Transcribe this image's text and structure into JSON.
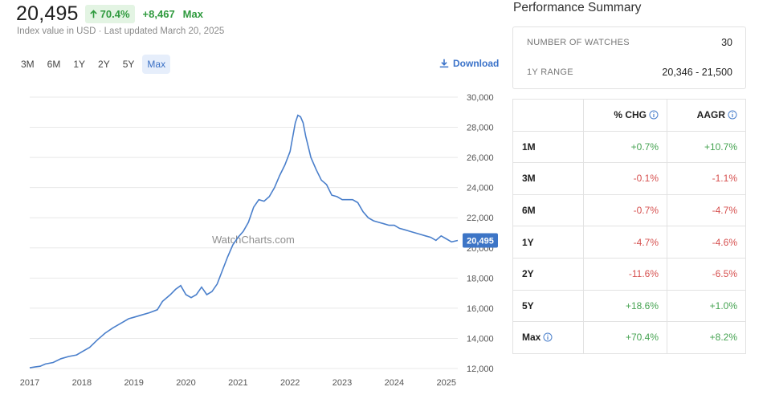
{
  "header": {
    "price": "20,495",
    "pct_change": "70.4%",
    "abs_change": "+8,467",
    "period": "Max",
    "subtitle": "Index value in USD · Last updated March 20, 2025"
  },
  "ranges": [
    "3M",
    "6M",
    "1Y",
    "2Y",
    "5Y",
    "Max"
  ],
  "active_range": "Max",
  "download_label": "Download",
  "colors": {
    "line": "#4a7fcb",
    "positive": "#46a352",
    "negative": "#d6504f",
    "badge_bg": "#e3f4e3",
    "active_range_bg": "#e6eefb",
    "last_value_label_bg": "#3d75c6"
  },
  "summary": {
    "title": "Performance Summary",
    "watches_label": "NUMBER OF WATCHES",
    "watches_value": "30",
    "range_label": "1Y RANGE",
    "range_value": "20,346 - 21,500"
  },
  "perf_table": {
    "col_pct": "% CHG",
    "col_aagr": "AAGR",
    "rows": [
      {
        "label": "1M",
        "pct": "+0.7%",
        "aagr": "+10.7%",
        "pct_sign": "pos",
        "aagr_sign": "pos"
      },
      {
        "label": "3M",
        "pct": "-0.1%",
        "aagr": "-1.1%",
        "pct_sign": "neg",
        "aagr_sign": "neg"
      },
      {
        "label": "6M",
        "pct": "-0.7%",
        "aagr": "-4.7%",
        "pct_sign": "neg",
        "aagr_sign": "neg"
      },
      {
        "label": "1Y",
        "pct": "-4.7%",
        "aagr": "-4.6%",
        "pct_sign": "neg",
        "aagr_sign": "neg"
      },
      {
        "label": "2Y",
        "pct": "-11.6%",
        "aagr": "-6.5%",
        "pct_sign": "neg",
        "aagr_sign": "neg"
      },
      {
        "label": "5Y",
        "pct": "+18.6%",
        "aagr": "+1.0%",
        "pct_sign": "pos",
        "aagr_sign": "pos"
      },
      {
        "label": "Max",
        "pct": "+70.4%",
        "aagr": "+8.2%",
        "pct_sign": "pos",
        "aagr_sign": "pos",
        "info": true
      }
    ]
  },
  "chart_data": {
    "type": "line",
    "watermark": "WatchCharts.com",
    "x_ticks": [
      "2017",
      "2018",
      "2019",
      "2020",
      "2021",
      "2022",
      "2023",
      "2024",
      "2025"
    ],
    "y_ticks": [
      "12,000",
      "14,000",
      "16,000",
      "18,000",
      "20,000",
      "22,000",
      "24,000",
      "26,000",
      "28,000",
      "30,000"
    ],
    "ylim": [
      12000,
      30000
    ],
    "xlim": [
      2017.0,
      2025.22
    ],
    "grid": true,
    "last_value_label": "20,495",
    "series": [
      {
        "x": [
          2017.0,
          2017.1,
          2017.2,
          2017.3,
          2017.45,
          2017.6,
          2017.75,
          2017.9,
          2018.0,
          2018.15,
          2018.3,
          2018.45,
          2018.6,
          2018.75,
          2018.9,
          2019.0,
          2019.15,
          2019.3,
          2019.45,
          2019.55,
          2019.7,
          2019.8,
          2019.9,
          2020.0,
          2020.1,
          2020.2,
          2020.3,
          2020.4,
          2020.5,
          2020.6,
          2020.7,
          2020.8,
          2020.9,
          2021.0,
          2021.1,
          2021.2,
          2021.3,
          2021.4,
          2021.5,
          2021.6,
          2021.7,
          2021.8,
          2021.9,
          2022.0,
          2022.1,
          2022.15,
          2022.2,
          2022.25,
          2022.3,
          2022.4,
          2022.5,
          2022.6,
          2022.7,
          2022.8,
          2022.9,
          2023.0,
          2023.1,
          2023.2,
          2023.3,
          2023.4,
          2023.5,
          2023.6,
          2023.7,
          2023.8,
          2023.9,
          2024.0,
          2024.1,
          2024.2,
          2024.3,
          2024.4,
          2024.5,
          2024.6,
          2024.7,
          2024.8,
          2024.9,
          2025.0,
          2025.1,
          2025.22
        ],
        "values": [
          12050,
          12100,
          12150,
          12300,
          12400,
          12650,
          12800,
          12900,
          13100,
          13400,
          13900,
          14350,
          14700,
          15000,
          15300,
          15400,
          15550,
          15700,
          15900,
          16450,
          16900,
          17250,
          17500,
          16900,
          16700,
          16900,
          17400,
          16900,
          17100,
          17600,
          18500,
          19400,
          20200,
          20700,
          21100,
          21700,
          22700,
          23200,
          23100,
          23400,
          24000,
          24800,
          25500,
          26400,
          28300,
          28800,
          28700,
          28300,
          27400,
          26000,
          25200,
          24500,
          24200,
          23500,
          23400,
          23200,
          23200,
          23200,
          23000,
          22400,
          22000,
          21800,
          21700,
          21600,
          21500,
          21500,
          21300,
          21200,
          21100,
          21000,
          20900,
          20800,
          20700,
          20500,
          20800,
          20600,
          20400,
          20495
        ]
      }
    ]
  }
}
